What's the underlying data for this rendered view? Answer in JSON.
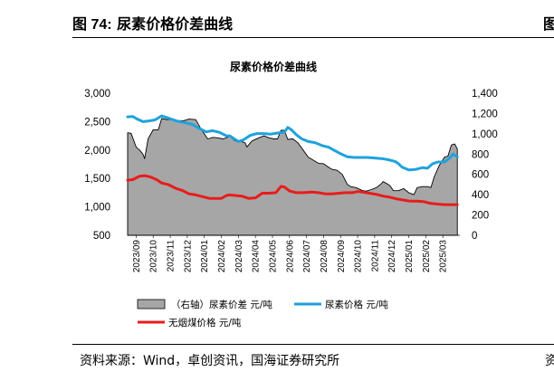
{
  "figure": {
    "label": "图 74:",
    "title": "尿素价格价差曲线",
    "edge_char": "图",
    "source": "资料来源：Wind，卓创资讯，国海证券研究所",
    "edge_source_char": "资"
  },
  "chart_data": {
    "type": "line",
    "title": "尿素价格价差曲线",
    "x_labels": [
      "2023/09",
      "2023/10",
      "2023/11",
      "2023/12",
      "2024/01",
      "2024/02",
      "2024/03",
      "2024/04",
      "2024/05",
      "2024/06",
      "2024/07",
      "2024/08",
      "2024/09",
      "2024/10",
      "2024/11",
      "2024/12",
      "2025/01",
      "2025/02",
      "2025/03"
    ],
    "x_range": [
      0,
      19.5
    ],
    "left_axis": {
      "ylim": [
        500,
        3000
      ],
      "ticks": [
        "3,000",
        "2,500",
        "2,000",
        "1,500",
        "1,000",
        "500"
      ],
      "values": [
        3000,
        2500,
        2000,
        1500,
        1000,
        500
      ]
    },
    "right_axis": {
      "ylim": [
        0,
        1400
      ],
      "ticks": [
        "1,400",
        "1,200",
        "1,000",
        "800",
        "600",
        "400",
        "200",
        "0"
      ],
      "values": [
        1400,
        1200,
        1000,
        800,
        600,
        400,
        200,
        0
      ]
    },
    "series": [
      {
        "name": "（右轴）尿素价差 元/吨",
        "axis": "right",
        "style": "area",
        "color": "#a6a6a6",
        "points": [
          [
            0,
            1010
          ],
          [
            0.2,
            1005
          ],
          [
            0.5,
            870
          ],
          [
            0.7,
            840
          ],
          [
            0.9,
            800
          ],
          [
            1.0,
            755
          ],
          [
            1.2,
            950
          ],
          [
            1.5,
            1040
          ],
          [
            1.8,
            1040
          ],
          [
            2.0,
            1150
          ],
          [
            2.3,
            1140
          ],
          [
            2.6,
            1140
          ],
          [
            3.0,
            1130
          ],
          [
            3.3,
            1130
          ],
          [
            3.6,
            1145
          ],
          [
            4.0,
            1140
          ],
          [
            4.3,
            1050
          ],
          [
            4.7,
            950
          ],
          [
            5.0,
            965
          ],
          [
            5.3,
            960
          ],
          [
            5.6,
            950
          ],
          [
            6.0,
            975
          ],
          [
            6.3,
            930
          ],
          [
            6.6,
            930
          ],
          [
            6.9,
            910
          ],
          [
            7.0,
            870
          ],
          [
            7.3,
            930
          ],
          [
            7.7,
            960
          ],
          [
            8.0,
            980
          ],
          [
            8.3,
            960
          ],
          [
            8.6,
            950
          ],
          [
            8.8,
            950
          ],
          [
            9.0,
            1035
          ],
          [
            9.2,
            1035
          ],
          [
            9.4,
            945
          ],
          [
            9.7,
            950
          ],
          [
            10.0,
            910
          ],
          [
            10.3,
            840
          ],
          [
            10.6,
            770
          ],
          [
            10.9,
            740
          ],
          [
            11.2,
            710
          ],
          [
            11.5,
            705
          ],
          [
            11.8,
            670
          ],
          [
            12.0,
            650
          ],
          [
            12.3,
            640
          ],
          [
            12.6,
            600
          ],
          [
            12.9,
            500
          ],
          [
            13.1,
            480
          ],
          [
            13.4,
            470
          ],
          [
            13.8,
            440
          ],
          [
            14.0,
            435
          ],
          [
            14.3,
            450
          ],
          [
            14.6,
            470
          ],
          [
            14.9,
            510
          ],
          [
            15.0,
            530
          ],
          [
            15.2,
            510
          ],
          [
            15.4,
            490
          ],
          [
            15.6,
            440
          ],
          [
            15.9,
            440
          ],
          [
            16.2,
            460
          ],
          [
            16.5,
            420
          ],
          [
            16.8,
            400
          ],
          [
            17.0,
            470
          ],
          [
            17.3,
            480
          ],
          [
            17.6,
            480
          ],
          [
            17.8,
            470
          ],
          [
            18.0,
            580
          ],
          [
            18.3,
            690
          ],
          [
            18.6,
            770
          ],
          [
            18.8,
            780
          ],
          [
            19.0,
            890
          ],
          [
            19.2,
            900
          ],
          [
            19.35,
            850
          ]
        ]
      },
      {
        "name": "尿素价格 元/吨",
        "axis": "left",
        "style": "line",
        "color": "#1fa2dc",
        "points": [
          [
            0,
            2585
          ],
          [
            0.3,
            2590
          ],
          [
            0.6,
            2540
          ],
          [
            0.9,
            2500
          ],
          [
            1.2,
            2510
          ],
          [
            1.6,
            2530
          ],
          [
            2.0,
            2600
          ],
          [
            2.4,
            2560
          ],
          [
            2.9,
            2510
          ],
          [
            3.4,
            2480
          ],
          [
            3.8,
            2450
          ],
          [
            4.2,
            2380
          ],
          [
            4.6,
            2320
          ],
          [
            5.0,
            2340
          ],
          [
            5.4,
            2310
          ],
          [
            5.8,
            2250
          ],
          [
            6.0,
            2250
          ],
          [
            6.5,
            2150
          ],
          [
            6.8,
            2180
          ],
          [
            7.2,
            2260
          ],
          [
            7.6,
            2290
          ],
          [
            8.0,
            2290
          ],
          [
            8.4,
            2280
          ],
          [
            8.8,
            2300
          ],
          [
            9.2,
            2310
          ],
          [
            9.4,
            2400
          ],
          [
            9.6,
            2360
          ],
          [
            9.9,
            2270
          ],
          [
            10.2,
            2200
          ],
          [
            10.6,
            2150
          ],
          [
            11.0,
            2130
          ],
          [
            11.4,
            2080
          ],
          [
            11.8,
            2050
          ],
          [
            12.1,
            2000
          ],
          [
            12.5,
            1935
          ],
          [
            12.9,
            1880
          ],
          [
            13.3,
            1870
          ],
          [
            13.7,
            1870
          ],
          [
            14.1,
            1870
          ],
          [
            14.5,
            1860
          ],
          [
            14.9,
            1850
          ],
          [
            15.3,
            1830
          ],
          [
            15.7,
            1800
          ],
          [
            15.9,
            1760
          ],
          [
            16.1,
            1700
          ],
          [
            16.5,
            1650
          ],
          [
            16.9,
            1660
          ],
          [
            17.3,
            1690
          ],
          [
            17.6,
            1680
          ],
          [
            17.9,
            1760
          ],
          [
            18.2,
            1790
          ],
          [
            18.6,
            1790
          ],
          [
            18.9,
            1860
          ],
          [
            19.1,
            1930
          ],
          [
            19.35,
            1880
          ]
        ]
      },
      {
        "name": "无烟煤价格 元/吨",
        "axis": "left",
        "style": "line",
        "color": "#e81c1c",
        "points": [
          [
            0,
            1470
          ],
          [
            0.3,
            1480
          ],
          [
            0.7,
            1540
          ],
          [
            1.0,
            1550
          ],
          [
            1.3,
            1530
          ],
          [
            1.7,
            1480
          ],
          [
            2.0,
            1420
          ],
          [
            2.4,
            1390
          ],
          [
            2.8,
            1330
          ],
          [
            3.2,
            1290
          ],
          [
            3.6,
            1230
          ],
          [
            4.0,
            1210
          ],
          [
            4.4,
            1180
          ],
          [
            4.8,
            1150
          ],
          [
            5.2,
            1150
          ],
          [
            5.5,
            1150
          ],
          [
            5.8,
            1200
          ],
          [
            6.0,
            1210
          ],
          [
            6.3,
            1200
          ],
          [
            6.7,
            1190
          ],
          [
            7.1,
            1150
          ],
          [
            7.5,
            1160
          ],
          [
            7.9,
            1240
          ],
          [
            8.3,
            1240
          ],
          [
            8.7,
            1250
          ],
          [
            9.0,
            1360
          ],
          [
            9.2,
            1350
          ],
          [
            9.5,
            1280
          ],
          [
            9.9,
            1250
          ],
          [
            10.3,
            1250
          ],
          [
            10.8,
            1260
          ],
          [
            11.2,
            1250
          ],
          [
            11.6,
            1230
          ],
          [
            12.0,
            1230
          ],
          [
            12.4,
            1240
          ],
          [
            12.8,
            1250
          ],
          [
            13.2,
            1250
          ],
          [
            13.5,
            1270
          ],
          [
            13.8,
            1260
          ],
          [
            14.2,
            1240
          ],
          [
            14.6,
            1220
          ],
          [
            15.0,
            1190
          ],
          [
            15.4,
            1170
          ],
          [
            15.8,
            1140
          ],
          [
            16.2,
            1120
          ],
          [
            16.6,
            1100
          ],
          [
            17.0,
            1100
          ],
          [
            17.4,
            1090
          ],
          [
            17.8,
            1060
          ],
          [
            18.2,
            1050
          ],
          [
            18.6,
            1040
          ],
          [
            19.0,
            1040
          ],
          [
            19.35,
            1040
          ]
        ]
      }
    ],
    "legend": [
      "（右轴）尿素价差 元/吨",
      "尿素价格 元/吨",
      "无烟煤价格 元/吨"
    ],
    "grid": false
  }
}
